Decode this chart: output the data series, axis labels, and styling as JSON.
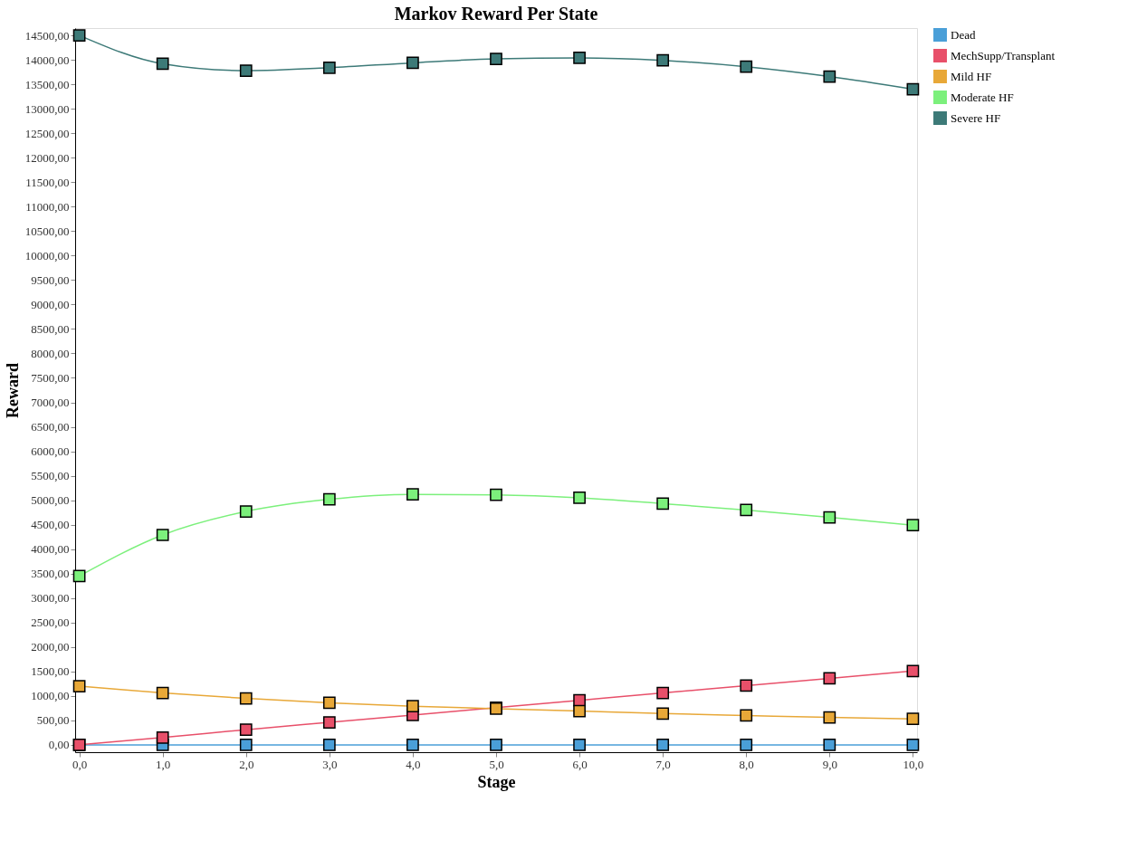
{
  "chart_data": {
    "type": "line",
    "title": "Markov Reward Per State",
    "xlabel": "Stage",
    "ylabel": "Reward",
    "x": [
      0,
      1,
      2,
      3,
      4,
      5,
      6,
      7,
      8,
      9,
      10
    ],
    "series": [
      {
        "name": "Dead",
        "color": "#4a9fd8",
        "values": [
          0,
          0,
          0,
          0,
          0,
          0,
          0,
          0,
          0,
          0,
          0
        ]
      },
      {
        "name": "MechSupp/Transplant",
        "color": "#e8506a",
        "values": [
          0,
          150,
          310,
          460,
          610,
          760,
          910,
          1060,
          1210,
          1360,
          1510
        ]
      },
      {
        "name": "Mild HF",
        "color": "#e8a838",
        "values": [
          1200,
          1060,
          950,
          860,
          790,
          740,
          690,
          640,
          600,
          560,
          530
        ]
      },
      {
        "name": "Moderate HF",
        "color": "#7cf07c",
        "values": [
          3450,
          4290,
          4770,
          5020,
          5120,
          5110,
          5050,
          4930,
          4800,
          4650,
          4490
        ]
      },
      {
        "name": "Severe HF",
        "color": "#3d7a78",
        "values": [
          14500,
          13920,
          13780,
          13840,
          13940,
          14020,
          14040,
          13990,
          13860,
          13660,
          13400
        ]
      }
    ],
    "xlim": [
      -0.05,
      10.05
    ],
    "xticks": [
      {
        "value": 0,
        "label": "0,0"
      },
      {
        "value": 1,
        "label": "1,0"
      },
      {
        "value": 2,
        "label": "2,0"
      },
      {
        "value": 3,
        "label": "3,0"
      },
      {
        "value": 4,
        "label": "4,0"
      },
      {
        "value": 5,
        "label": "5,0"
      },
      {
        "value": 6,
        "label": "6,0"
      },
      {
        "value": 7,
        "label": "7,0"
      },
      {
        "value": 8,
        "label": "8,0"
      },
      {
        "value": 9,
        "label": "9,0"
      },
      {
        "value": 10,
        "label": "10,0"
      }
    ],
    "ylim": [
      -150,
      14650
    ],
    "yticks": [
      {
        "value": 0,
        "label": "0,00"
      },
      {
        "value": 500,
        "label": "500,00"
      },
      {
        "value": 1000,
        "label": "1000,00"
      },
      {
        "value": 1500,
        "label": "1500,00"
      },
      {
        "value": 2000,
        "label": "2000,00"
      },
      {
        "value": 2500,
        "label": "2500,00"
      },
      {
        "value": 3000,
        "label": "3000,00"
      },
      {
        "value": 3500,
        "label": "3500,00"
      },
      {
        "value": 4000,
        "label": "4000,00"
      },
      {
        "value": 4500,
        "label": "4500,00"
      },
      {
        "value": 5000,
        "label": "5000,00"
      },
      {
        "value": 5500,
        "label": "5500,00"
      },
      {
        "value": 6000,
        "label": "6000,00"
      },
      {
        "value": 6500,
        "label": "6500,00"
      },
      {
        "value": 7000,
        "label": "7000,00"
      },
      {
        "value": 7500,
        "label": "7500,00"
      },
      {
        "value": 8000,
        "label": "8000,00"
      },
      {
        "value": 8500,
        "label": "8500,00"
      },
      {
        "value": 9000,
        "label": "9000,00"
      },
      {
        "value": 9500,
        "label": "9500,00"
      },
      {
        "value": 10000,
        "label": "10000,00"
      },
      {
        "value": 10500,
        "label": "10500,00"
      },
      {
        "value": 11000,
        "label": "11000,00"
      },
      {
        "value": 11500,
        "label": "11500,00"
      },
      {
        "value": 12000,
        "label": "12000,00"
      },
      {
        "value": 12500,
        "label": "12500,00"
      },
      {
        "value": 13000,
        "label": "13000,00"
      },
      {
        "value": 13500,
        "label": "13500,00"
      },
      {
        "value": 14000,
        "label": "14000,00"
      },
      {
        "value": 14500,
        "label": "14500,00"
      }
    ],
    "legend": "right",
    "marker": "square",
    "line_style": "solid",
    "grid": false
  }
}
